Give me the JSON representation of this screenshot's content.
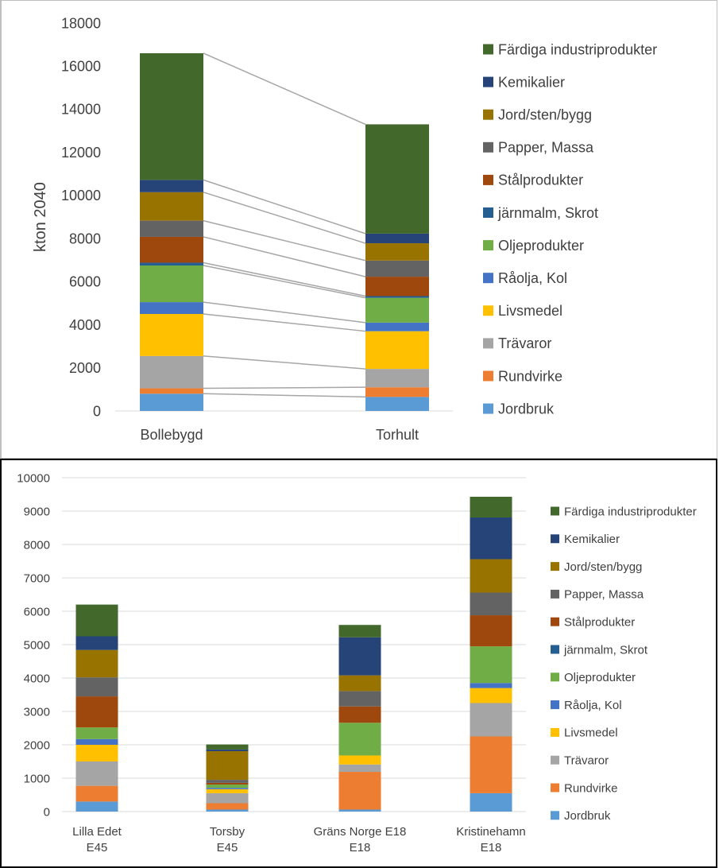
{
  "chart_data": [
    {
      "type": "bar",
      "stacked": true,
      "series_lines": true,
      "categories": [
        "Bollebygd",
        "Torhult"
      ],
      "ylabel": "kton 2040",
      "ylim": [
        0,
        18000
      ],
      "yticks": [
        "0",
        "2000",
        "4000",
        "6000",
        "8000",
        "10000",
        "12000",
        "14000",
        "16000",
        "18000"
      ],
      "grid": false,
      "legend_position": "right",
      "series": [
        {
          "name": "Jordbruk",
          "color": "#5b9bd5",
          "values": [
            800,
            650
          ]
        },
        {
          "name": "Rundvirke",
          "color": "#ed7d31",
          "values": [
            250,
            450
          ]
        },
        {
          "name": "Trävaror",
          "color": "#a5a5a5",
          "values": [
            1500,
            850
          ]
        },
        {
          "name": "Livsmedel",
          "color": "#ffc000",
          "values": [
            1950,
            1750
          ]
        },
        {
          "name": "Råolja, Kol",
          "color": "#4472c4",
          "values": [
            550,
            400
          ]
        },
        {
          "name": "Oljeprodukter",
          "color": "#70ad47",
          "values": [
            1700,
            1150
          ]
        },
        {
          "name": "järnmalm, Skrot",
          "color": "#255e91",
          "values": [
            130,
            80
          ]
        },
        {
          "name": "Stålprodukter",
          "color": "#9e480e",
          "values": [
            1200,
            900
          ]
        },
        {
          "name": "Papper, Massa",
          "color": "#636363",
          "values": [
            750,
            750
          ]
        },
        {
          "name": "Jord/sten/bygg",
          "color": "#997300",
          "values": [
            1320,
            800
          ]
        },
        {
          "name": "Kemikalier",
          "color": "#264478",
          "values": [
            570,
            450
          ]
        },
        {
          "name": "Färdiga industriprodukter",
          "color": "#43682b",
          "values": [
            5880,
            5070
          ]
        }
      ]
    },
    {
      "type": "bar",
      "stacked": true,
      "categories": [
        [
          "Lilla Edet",
          "E45"
        ],
        [
          "Torsby",
          "E45"
        ],
        [
          "Gräns Norge E18",
          "E18"
        ],
        [
          "Kristinehamn",
          "E18"
        ]
      ],
      "ylim": [
        0,
        10000
      ],
      "yticks": [
        "0",
        "1000",
        "2000",
        "3000",
        "4000",
        "5000",
        "6000",
        "7000",
        "8000",
        "9000",
        "10000"
      ],
      "grid": true,
      "legend_position": "right",
      "series": [
        {
          "name": "Jordbruk",
          "color": "#5b9bd5",
          "values": [
            300,
            60,
            60,
            550
          ]
        },
        {
          "name": "Rundvirke",
          "color": "#ed7d31",
          "values": [
            470,
            190,
            1130,
            1700
          ]
        },
        {
          "name": "Trävaror",
          "color": "#a5a5a5",
          "values": [
            730,
            300,
            220,
            1000
          ]
        },
        {
          "name": "Livsmedel",
          "color": "#ffc000",
          "values": [
            500,
            120,
            270,
            450
          ]
        },
        {
          "name": "Råolja, Kol",
          "color": "#4472c4",
          "values": [
            170,
            40,
            0,
            150
          ]
        },
        {
          "name": "Oljeprodukter",
          "color": "#70ad47",
          "values": [
            350,
            100,
            980,
            1100
          ]
        },
        {
          "name": "järnmalm, Skrot",
          "color": "#255e91",
          "values": [
            0,
            0,
            0,
            0
          ]
        },
        {
          "name": "Stålprodukter",
          "color": "#9e480e",
          "values": [
            930,
            50,
            490,
            930
          ]
        },
        {
          "name": "Papper, Massa",
          "color": "#636363",
          "values": [
            570,
            90,
            460,
            680
          ]
        },
        {
          "name": "Jord/sten/bygg",
          "color": "#997300",
          "values": [
            820,
            860,
            470,
            1000
          ]
        },
        {
          "name": "Kemikalier",
          "color": "#264478",
          "values": [
            410,
            50,
            1140,
            1250
          ]
        },
        {
          "name": "Färdiga industriprodukter",
          "color": "#43682b",
          "values": [
            950,
            150,
            370,
            620
          ]
        }
      ]
    }
  ]
}
